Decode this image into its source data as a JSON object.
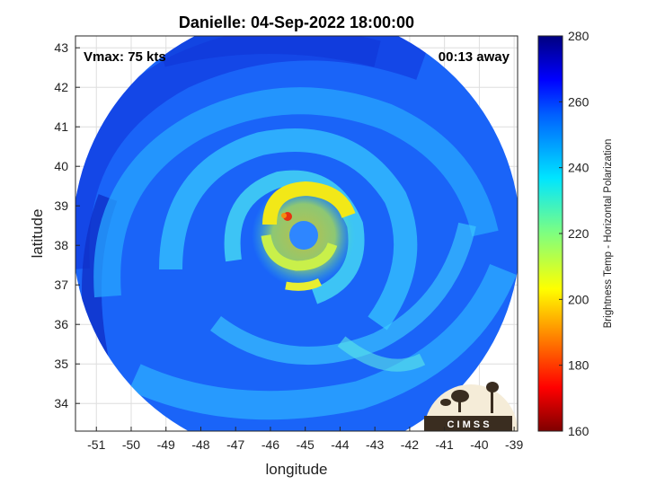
{
  "title": "Danielle: 04-Sep-2022 18:00:00",
  "corner_left": "Vmax: 75 kts",
  "corner_right": "00:13 away",
  "xlabel": "longitude",
  "ylabel": "latitude",
  "xticks": [
    "-51",
    "-50",
    "-49",
    "-48",
    "-47",
    "-46",
    "-45",
    "-44",
    "-43",
    "-42",
    "-41",
    "-40",
    "-39"
  ],
  "yticks": [
    "34",
    "35",
    "36",
    "37",
    "38",
    "39",
    "40",
    "41",
    "42",
    "43"
  ],
  "colorbar": {
    "label": "Brightness Temp - Horizontal Polarization",
    "ticks": [
      "160",
      "180",
      "200",
      "220",
      "240",
      "260",
      "280"
    ],
    "range": [
      160,
      280
    ]
  },
  "logo_text": "C I M S S",
  "colors": {
    "swath_base": "#1a66ff",
    "eye_wall": "#ffe000",
    "eye_hot": "#e03010"
  },
  "chart_data": {
    "type": "heatmap",
    "title": "Danielle: 04-Sep-2022 18:00:00",
    "xlabel": "longitude",
    "ylabel": "latitude",
    "xlim": [
      -51.6,
      -38.9
    ],
    "ylim": [
      33.3,
      43.3
    ],
    "storm_center": {
      "lon": -45.2,
      "lat": 38.5
    },
    "colorbar_range": [
      160,
      280
    ],
    "colorbar_label": "Brightness Temp - Horizontal Polarization"
  }
}
